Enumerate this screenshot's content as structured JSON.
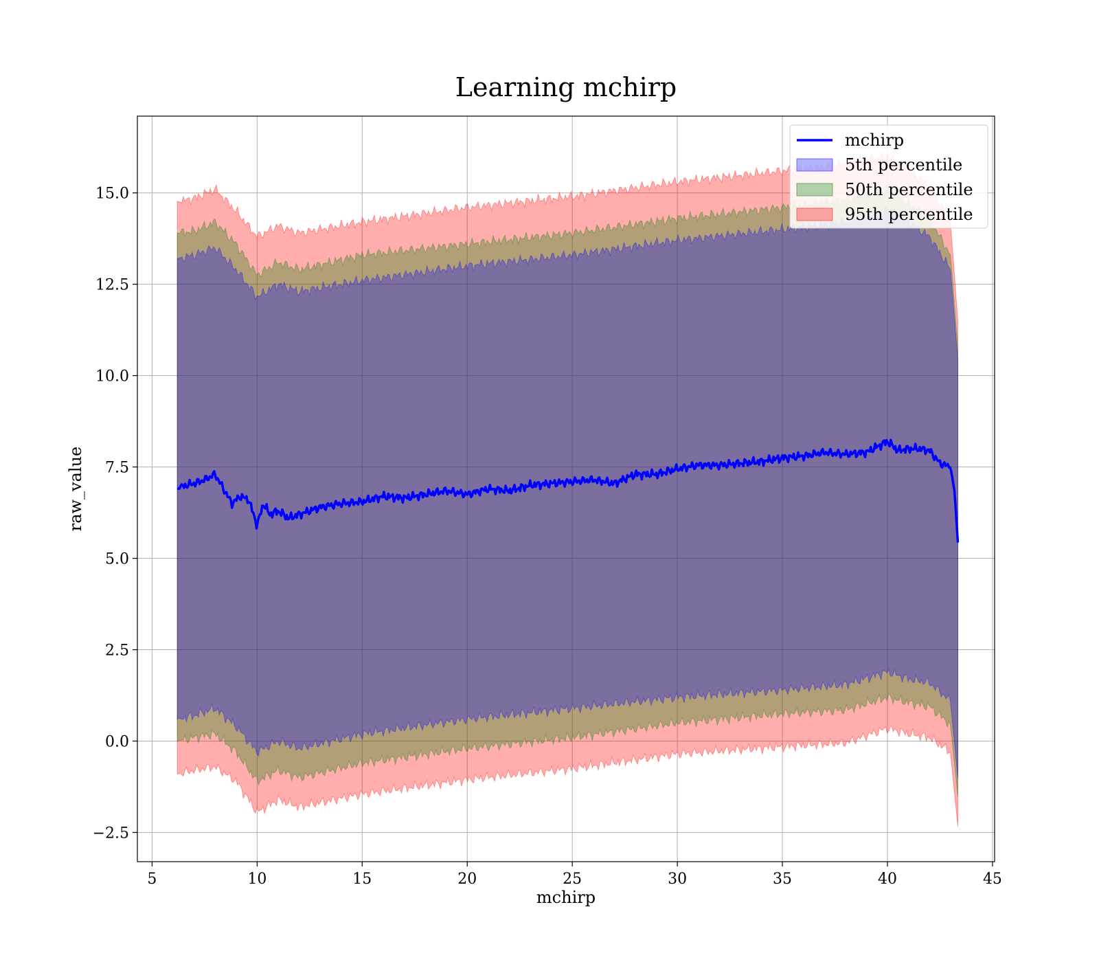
{
  "chart_data": {
    "type": "line",
    "title": "Learning mchirp",
    "xlabel": "mchirp",
    "ylabel": "raw_value",
    "xlim": [
      4.3,
      45.1
    ],
    "ylim": [
      -3.3,
      17.1
    ],
    "x_ticks": [
      5,
      10,
      15,
      20,
      25,
      30,
      35,
      40,
      45
    ],
    "x_tick_labels": [
      "5",
      "10",
      "15",
      "20",
      "25",
      "30",
      "35",
      "40",
      "45"
    ],
    "y_ticks": [
      -2.5,
      0.0,
      2.5,
      5.0,
      7.5,
      10.0,
      12.5,
      15.0
    ],
    "y_tick_labels": [
      "−2.5",
      "0.0",
      "2.5",
      "5.0",
      "7.5",
      "10.0",
      "12.5",
      "15.0"
    ],
    "grid": true,
    "legend_position": "top-right",
    "legend": [
      "mchirp",
      "5th percentile",
      "50th percentile",
      "95th percentile"
    ],
    "line": {
      "name": "mchirp",
      "color": "#0000ff",
      "x": [
        6.2,
        6.6,
        7.0,
        7.5,
        8.0,
        8.4,
        8.8,
        9.2,
        9.6,
        10.0,
        10.3,
        10.6,
        11.0,
        11.5,
        12.0,
        12.5,
        13.0,
        14.0,
        15.0,
        16.0,
        17.0,
        18.0,
        19.0,
        20.0,
        21.0,
        22.0,
        23.0,
        24.0,
        25.0,
        26.0,
        27.0,
        28.0,
        29.0,
        30.0,
        31.0,
        32.0,
        33.0,
        34.0,
        35.0,
        36.0,
        37.0,
        38.0,
        39.0,
        40.0,
        40.5,
        41.0,
        41.5,
        42.0,
        42.5,
        43.0,
        43.2,
        43.35
      ],
      "y": [
        6.9,
        7.0,
        7.05,
        7.15,
        7.3,
        6.9,
        6.5,
        6.7,
        6.6,
        5.9,
        6.5,
        6.2,
        6.3,
        6.1,
        6.2,
        6.3,
        6.4,
        6.5,
        6.55,
        6.7,
        6.65,
        6.75,
        6.85,
        6.75,
        6.9,
        6.85,
        7.0,
        7.05,
        7.1,
        7.15,
        7.05,
        7.3,
        7.3,
        7.45,
        7.55,
        7.55,
        7.6,
        7.65,
        7.75,
        7.8,
        7.9,
        7.85,
        7.9,
        8.2,
        7.95,
        8.0,
        8.0,
        7.95,
        7.6,
        7.5,
        6.8,
        5.45
      ]
    },
    "bands": [
      {
        "name": "95th percentile",
        "color": "#ff0000",
        "opacity": 0.32,
        "x": [
          6.2,
          7.0,
          8.0,
          9.0,
          10.0,
          11.0,
          12.0,
          15.0,
          20.0,
          25.0,
          30.0,
          35.0,
          38.0,
          40.0,
          41.0,
          42.0,
          43.0,
          43.35
        ],
        "upper": [
          14.75,
          14.85,
          15.1,
          14.5,
          13.8,
          14.1,
          13.9,
          14.2,
          14.6,
          14.9,
          15.3,
          15.6,
          15.8,
          16.0,
          15.6,
          15.2,
          14.2,
          11.5
        ],
        "lower": [
          -0.9,
          -0.8,
          -0.7,
          -1.1,
          -1.95,
          -1.6,
          -1.8,
          -1.45,
          -1.05,
          -0.75,
          -0.35,
          -0.15,
          -0.05,
          0.35,
          0.2,
          0.1,
          -0.3,
          -2.35
        ]
      },
      {
        "name": "50th percentile",
        "color": "#008000",
        "opacity": 0.3,
        "x": [
          6.2,
          7.0,
          8.0,
          9.0,
          10.0,
          11.0,
          12.0,
          15.0,
          20.0,
          25.0,
          30.0,
          35.0,
          38.0,
          40.0,
          41.0,
          42.0,
          43.0,
          43.35
        ],
        "upper": [
          13.9,
          13.95,
          14.2,
          13.6,
          12.75,
          13.1,
          12.9,
          13.3,
          13.6,
          13.9,
          14.3,
          14.6,
          14.8,
          15.1,
          14.7,
          14.3,
          13.3,
          10.8
        ],
        "lower": [
          0.0,
          0.1,
          0.2,
          -0.3,
          -1.1,
          -0.8,
          -1.0,
          -0.6,
          -0.2,
          0.1,
          0.5,
          0.75,
          0.85,
          1.2,
          1.05,
          0.95,
          0.45,
          -1.5
        ]
      },
      {
        "name": "5th percentile",
        "color": "#0000ff",
        "opacity": 0.3,
        "x": [
          6.2,
          7.0,
          8.0,
          9.0,
          10.0,
          11.0,
          12.0,
          15.0,
          20.0,
          25.0,
          30.0,
          35.0,
          38.0,
          40.0,
          41.0,
          42.0,
          43.0,
          43.35
        ],
        "upper": [
          13.2,
          13.3,
          13.5,
          12.9,
          12.15,
          12.5,
          12.3,
          12.6,
          13.0,
          13.3,
          13.7,
          14.0,
          14.2,
          14.5,
          14.2,
          13.8,
          12.9,
          10.4
        ],
        "lower": [
          0.6,
          0.7,
          0.9,
          0.4,
          -0.3,
          0.0,
          -0.2,
          0.2,
          0.6,
          0.9,
          1.2,
          1.4,
          1.55,
          1.9,
          1.7,
          1.6,
          1.1,
          -1.0
        ]
      }
    ]
  }
}
